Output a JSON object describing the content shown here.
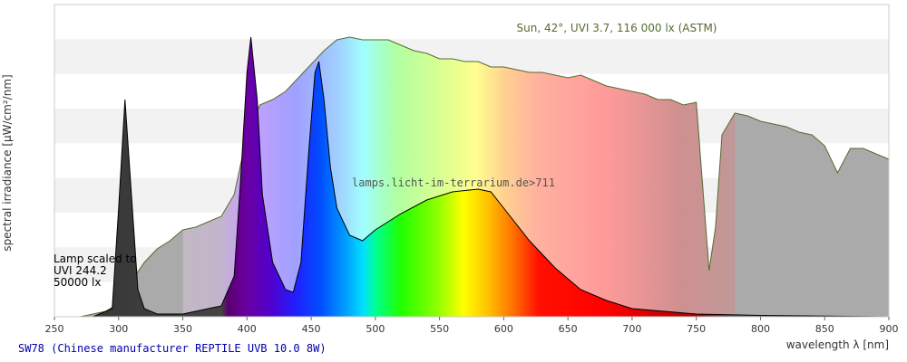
{
  "chart_data": {
    "type": "area",
    "xlim": [
      250,
      900
    ],
    "ylim": [
      0,
      115
    ],
    "xticks": [
      250,
      300,
      350,
      400,
      450,
      500,
      550,
      600,
      650,
      700,
      750,
      800,
      850,
      900
    ],
    "xlabel": "wavelength λ [nm]",
    "ylabel": "spectral irradiance [µW/cm²/nm]",
    "watermark": "lamps.licht-im-terrarium.de>711",
    "annotation": [
      "Lamp scaled to",
      "UVI 244.2",
      "50000 lx"
    ],
    "series": [
      {
        "name": "Sun, 42°, UVI 3.7, 116 000 lx (ASTM)",
        "color": "#556b2f",
        "x": [
          270,
          290,
          300,
          310,
          320,
          330,
          340,
          350,
          360,
          370,
          380,
          390,
          400,
          410,
          420,
          430,
          440,
          450,
          460,
          470,
          480,
          490,
          500,
          510,
          520,
          530,
          540,
          550,
          560,
          570,
          580,
          590,
          600,
          610,
          620,
          630,
          640,
          650,
          660,
          670,
          680,
          690,
          700,
          710,
          720,
          730,
          740,
          750,
          760,
          765,
          770,
          780,
          790,
          800,
          810,
          820,
          830,
          840,
          850,
          860,
          870,
          880,
          890,
          900
        ],
        "values": [
          0,
          2,
          5,
          13,
          20,
          25,
          28,
          32,
          33,
          35,
          37,
          45,
          67,
          78,
          80,
          83,
          88,
          93,
          98,
          102,
          103,
          102,
          102,
          102,
          100,
          98,
          97,
          95,
          95,
          94,
          94,
          92,
          92,
          91,
          90,
          90,
          89,
          88,
          89,
          87,
          85,
          84,
          83,
          82,
          80,
          80,
          78,
          79,
          17,
          33,
          67,
          75,
          74,
          72,
          71,
          70,
          68,
          67,
          63,
          53,
          62,
          62,
          60,
          58
        ]
      },
      {
        "name": "SW78 (Chinese manufacturer REPTILE UVB 10.0 8W)",
        "color": "#000000",
        "x": [
          280,
          295,
          300,
          305,
          310,
          315,
          320,
          330,
          350,
          360,
          370,
          380,
          390,
          395,
          400,
          403,
          408,
          412,
          420,
          430,
          436,
          442,
          448,
          453,
          456,
          460,
          465,
          470,
          480,
          490,
          500,
          520,
          540,
          560,
          580,
          590,
          600,
          620,
          640,
          660,
          680,
          700,
          750,
          800,
          900
        ],
        "values": [
          0,
          3,
          40,
          80,
          45,
          10,
          3,
          1,
          1,
          2,
          3,
          4,
          15,
          50,
          90,
          103,
          80,
          45,
          20,
          10,
          9,
          20,
          60,
          90,
          94,
          80,
          55,
          40,
          30,
          28,
          32,
          38,
          43,
          46,
          47,
          46,
          40,
          28,
          18,
          10,
          6,
          3,
          1,
          0.5,
          0
        ]
      }
    ]
  }
}
